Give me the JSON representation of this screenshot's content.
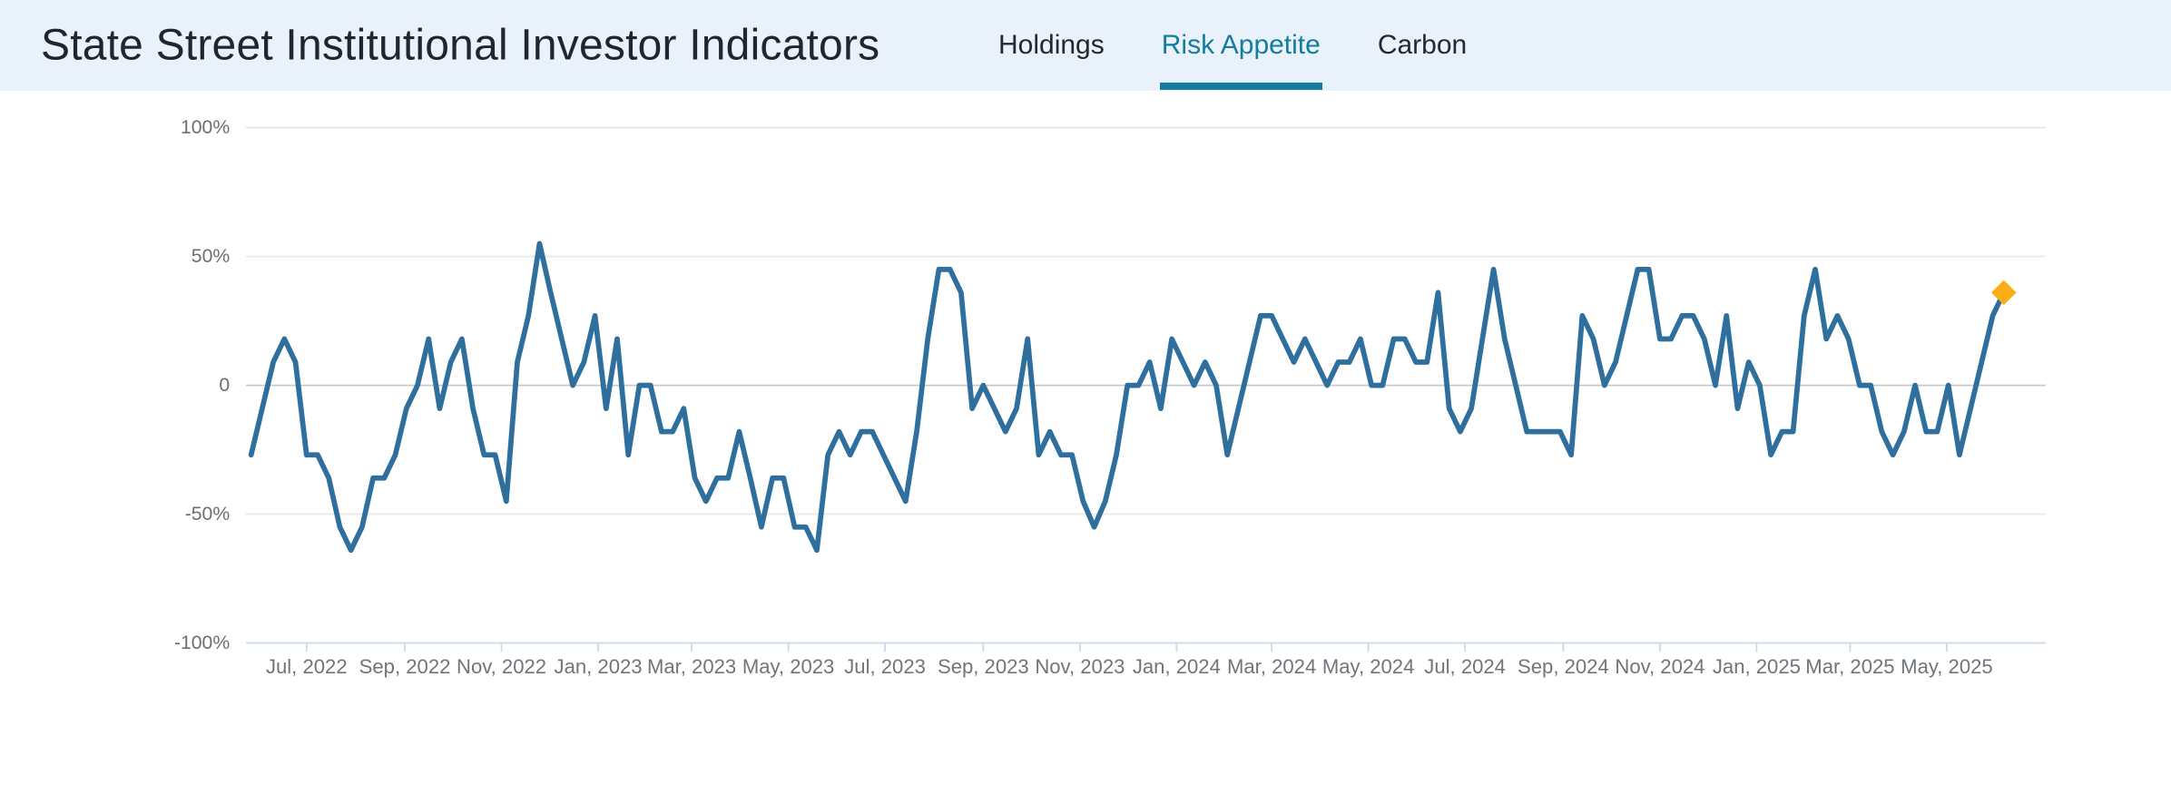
{
  "header": {
    "title": "State Street Institutional Investor Indicators",
    "tabs": [
      {
        "label": "Holdings",
        "active": false
      },
      {
        "label": "Risk Appetite",
        "active": true
      },
      {
        "label": "Carbon",
        "active": false
      }
    ]
  },
  "colors": {
    "header_bg": "#e9f1fa",
    "title_text": "#1f262d",
    "tab_inactive": "#24292e",
    "tab_active": "#147c9f",
    "line": "#2f6f9e",
    "marker": "#f9ae15",
    "grid": "#e7e7e7",
    "zero_line": "#c9c9c9",
    "axis_line": "#c9d9eb",
    "y_label": "#6b6f73",
    "x_label": "#6e757c"
  },
  "chart_data": {
    "type": "line",
    "title": "",
    "xlabel": "",
    "ylabel": "",
    "unit": "%",
    "ylim": [
      -100,
      100
    ],
    "grid": true,
    "legend_position": "none",
    "x_start_date": "2022-05-27",
    "x_step_days": 7,
    "y_ticks": [
      {
        "value": 100,
        "label": "100%"
      },
      {
        "value": 50,
        "label": "50%"
      },
      {
        "value": 0,
        "label": "0"
      },
      {
        "value": -50,
        "label": "-50%"
      },
      {
        "value": -100,
        "label": "-100%"
      }
    ],
    "x_tick_labels": [
      "Jul, 2022",
      "Sep, 2022",
      "Nov, 2022",
      "Jan, 2023",
      "Mar, 2023",
      "May, 2023",
      "Jul, 2023",
      "Sep, 2023",
      "Nov, 2023",
      "Jan, 2024",
      "Mar, 2024",
      "May, 2024",
      "Jul, 2024",
      "Sep, 2024",
      "Nov, 2024",
      "Jan, 2025",
      "Mar, 2025",
      "May, 2025"
    ],
    "series": [
      {
        "name": "Risk Appetite",
        "values": [
          -27,
          -9,
          9,
          18,
          9,
          -27,
          -27,
          -36,
          -55,
          -64,
          -55,
          -36,
          -36,
          -27,
          -9,
          0,
          18,
          -9,
          9,
          18,
          -9,
          -27,
          -27,
          -45,
          9,
          27,
          55,
          36,
          18,
          0,
          9,
          27,
          -9,
          18,
          -27,
          0,
          0,
          -18,
          -18,
          -9,
          -36,
          -45,
          -36,
          -36,
          -18,
          -36,
          -55,
          -36,
          -36,
          -55,
          -55,
          -64,
          -27,
          -18,
          -27,
          -18,
          -18,
          -27,
          -36,
          -45,
          -18,
          18,
          45,
          45,
          36,
          -9,
          0,
          -9,
          -18,
          -9,
          18,
          -27,
          -18,
          -27,
          -27,
          -45,
          -55,
          -45,
          -27,
          0,
          0,
          9,
          -9,
          18,
          9,
          0,
          9,
          0,
          -27,
          -9,
          9,
          27,
          27,
          18,
          9,
          18,
          9,
          0,
          9,
          9,
          18,
          0,
          0,
          18,
          18,
          9,
          9,
          36,
          -9,
          -18,
          -9,
          18,
          45,
          18,
          0,
          -18,
          -18,
          -18,
          -18,
          -27,
          27,
          18,
          0,
          9,
          27,
          45,
          45,
          18,
          18,
          27,
          27,
          18,
          0,
          27,
          -9,
          9,
          0,
          -27,
          -18,
          -18,
          27,
          45,
          18,
          27,
          18,
          0,
          0,
          -18,
          -27,
          -18,
          0,
          -18,
          -18,
          0,
          -27,
          -9,
          9,
          27,
          36
        ]
      }
    ],
    "end_marker": {
      "series": "Risk Appetite",
      "value": 36,
      "shape": "diamond",
      "color": "#f9ae15"
    }
  }
}
